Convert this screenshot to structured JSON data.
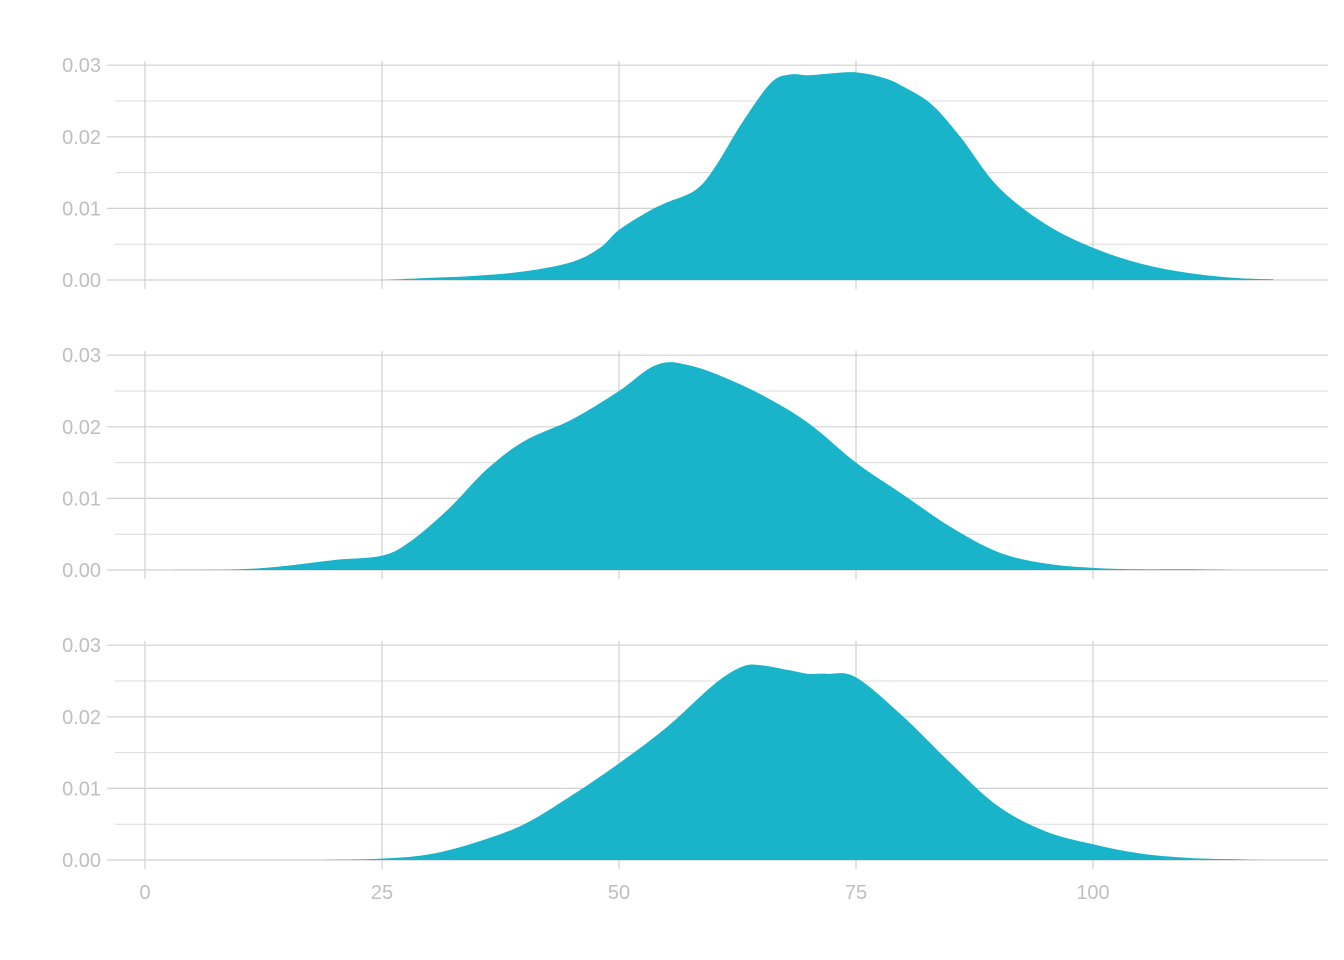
{
  "colors": {
    "fill": "#19b4ca",
    "grid": "#d0d0d0",
    "tick_text": "#bfbfbf",
    "background": "#ffffff"
  },
  "chart_data": {
    "type": "area",
    "subtype": "density-facets",
    "grid": true,
    "legend": "none",
    "xlim": [
      -4,
      120
    ],
    "x_ticks": [
      0,
      25,
      50,
      75,
      100
    ],
    "x_tick_labels": [
      "0",
      "25",
      "50",
      "75",
      "100"
    ],
    "ylim": [
      0,
      0.03
    ],
    "y_ticks": [
      0,
      0.01,
      0.02,
      0.03
    ],
    "y_tick_labels": [
      "0.00",
      "0.01",
      "0.02",
      "0.03"
    ],
    "panels": [
      {
        "x": [
          25,
          30,
          35,
          40,
          45,
          48,
          50,
          53,
          55,
          58,
          60,
          63,
          66,
          68,
          70,
          72,
          75,
          78,
          80,
          83,
          86,
          90,
          95,
          100,
          105,
          110,
          115,
          119
        ],
        "y": [
          0,
          0.0003,
          0.0006,
          0.0012,
          0.0025,
          0.0045,
          0.007,
          0.0095,
          0.0108,
          0.0125,
          0.0155,
          0.022,
          0.0275,
          0.0287,
          0.0286,
          0.0288,
          0.029,
          0.0282,
          0.027,
          0.0245,
          0.02,
          0.013,
          0.0078,
          0.0045,
          0.0023,
          0.001,
          0.0003,
          0.0001
        ]
      },
      {
        "x": [
          2.5,
          10,
          15,
          20,
          25,
          28,
          32,
          36,
          40,
          45,
          50,
          53,
          55,
          57,
          60,
          65,
          70,
          75,
          80,
          85,
          90,
          95,
          100,
          105,
          110,
          115
        ],
        "y": [
          0,
          0.0001,
          0.0006,
          0.0014,
          0.002,
          0.004,
          0.0085,
          0.014,
          0.018,
          0.021,
          0.025,
          0.028,
          0.029,
          0.0287,
          0.0275,
          0.0245,
          0.0205,
          0.015,
          0.0105,
          0.006,
          0.0025,
          0.0009,
          0.0003,
          0.0001,
          0.0001,
          0
        ]
      },
      {
        "x": [
          18,
          25,
          30,
          35,
          40,
          45,
          50,
          55,
          60,
          63,
          65,
          68,
          70,
          72,
          75,
          80,
          85,
          90,
          95,
          100,
          105,
          110,
          115,
          118
        ],
        "y": [
          0,
          0.0002,
          0.0008,
          0.0025,
          0.005,
          0.009,
          0.0135,
          0.0185,
          0.0245,
          0.027,
          0.0272,
          0.0265,
          0.026,
          0.026,
          0.0255,
          0.02,
          0.0135,
          0.0075,
          0.004,
          0.0022,
          0.0009,
          0.0003,
          0.0001,
          0
        ]
      }
    ]
  }
}
